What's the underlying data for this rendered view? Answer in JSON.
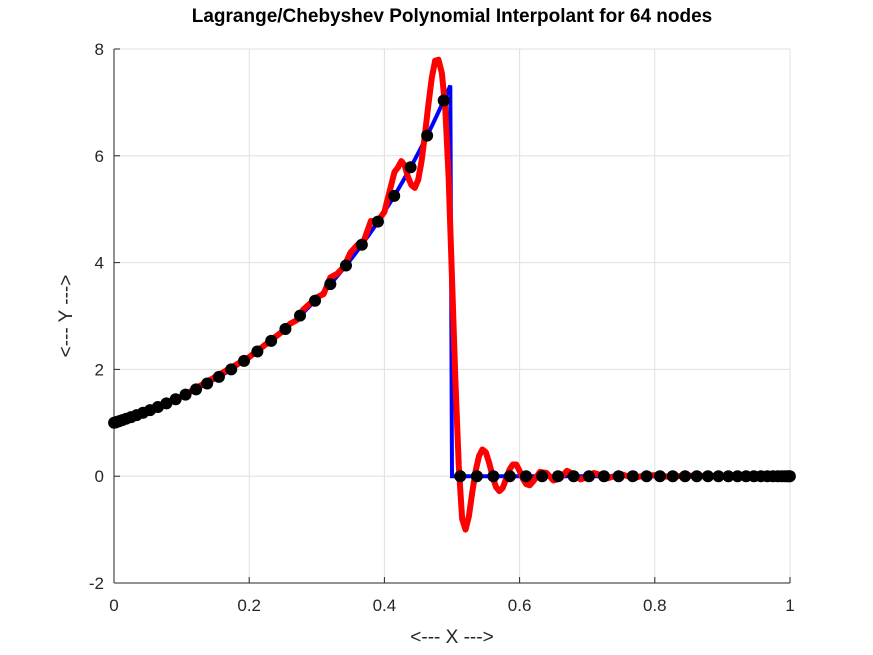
{
  "chart_data": {
    "type": "line",
    "title": "Lagrange/Chebyshev Polynomial Interpolant for 64 nodes",
    "xlabel": "<--- X --->",
    "ylabel": "<--- Y --->",
    "xlim": [
      0,
      1
    ],
    "ylim": [
      -2,
      8
    ],
    "xticks": [
      0,
      0.2,
      0.4,
      0.6,
      0.8,
      1
    ],
    "xtick_labels": [
      "0",
      "0.2",
      "0.4",
      "0.6",
      "0.8",
      "1"
    ],
    "yticks": [
      -2,
      0,
      2,
      4,
      6,
      8
    ],
    "ytick_labels": [
      "-2",
      "0",
      "2",
      "4",
      "6",
      "8"
    ],
    "grid": true,
    "legend": "none",
    "colors": {
      "function": "#0000ff",
      "interpolant": "#ff0000",
      "nodes": "#000000",
      "grid": "#e0e0e0",
      "axes": "#262626"
    },
    "series": [
      {
        "role": "function",
        "color": "#0000ff",
        "description_visible": false,
        "points": [
          [
            0,
            1
          ],
          [
            0.1,
            1.49
          ],
          [
            0.2,
            2.23
          ],
          [
            0.3,
            3.32
          ],
          [
            0.4,
            4.95
          ],
          [
            0.485,
            7.03
          ],
          [
            0.5,
            7.39
          ],
          [
            0.5,
            0
          ],
          [
            1,
            0
          ]
        ]
      },
      {
        "role": "interpolant",
        "color": "#ff0000",
        "points": [
          [
            0.0,
            1.0
          ],
          [
            0.1,
            1.49
          ],
          [
            0.2,
            2.23
          ],
          [
            0.25,
            2.72
          ],
          [
            0.26,
            2.85
          ],
          [
            0.27,
            2.92
          ],
          [
            0.28,
            3.12
          ],
          [
            0.3,
            3.35
          ],
          [
            0.31,
            3.41
          ],
          [
            0.32,
            3.72
          ],
          [
            0.33,
            3.79
          ],
          [
            0.34,
            3.92
          ],
          [
            0.35,
            4.19
          ],
          [
            0.36,
            4.33
          ],
          [
            0.37,
            4.42
          ],
          [
            0.38,
            4.78
          ],
          [
            0.39,
            4.77
          ],
          [
            0.4,
            4.95
          ],
          [
            0.405,
            5.2
          ],
          [
            0.41,
            5.45
          ],
          [
            0.415,
            5.7
          ],
          [
            0.42,
            5.78
          ],
          [
            0.425,
            5.9
          ],
          [
            0.43,
            5.82
          ],
          [
            0.435,
            5.6
          ],
          [
            0.44,
            5.45
          ],
          [
            0.445,
            5.4
          ],
          [
            0.45,
            5.55
          ],
          [
            0.455,
            5.9
          ],
          [
            0.46,
            6.4
          ],
          [
            0.465,
            6.95
          ],
          [
            0.47,
            7.45
          ],
          [
            0.475,
            7.78
          ],
          [
            0.48,
            7.8
          ],
          [
            0.485,
            7.55
          ],
          [
            0.49,
            6.9
          ],
          [
            0.495,
            5.6
          ],
          [
            0.5,
            3.7
          ],
          [
            0.505,
            1.8
          ],
          [
            0.51,
            0.2
          ],
          [
            0.515,
            -0.8
          ],
          [
            0.52,
            -1.0
          ],
          [
            0.525,
            -0.75
          ],
          [
            0.53,
            -0.3
          ],
          [
            0.535,
            0.1
          ],
          [
            0.54,
            0.38
          ],
          [
            0.545,
            0.5
          ],
          [
            0.55,
            0.45
          ],
          [
            0.555,
            0.25
          ],
          [
            0.56,
            0.0
          ],
          [
            0.565,
            -0.2
          ],
          [
            0.57,
            -0.28
          ],
          [
            0.575,
            -0.22
          ],
          [
            0.58,
            -0.05
          ],
          [
            0.585,
            0.12
          ],
          [
            0.59,
            0.22
          ],
          [
            0.595,
            0.22
          ],
          [
            0.6,
            0.1
          ],
          [
            0.605,
            -0.05
          ],
          [
            0.61,
            -0.15
          ],
          [
            0.615,
            -0.17
          ],
          [
            0.62,
            -0.1
          ],
          [
            0.63,
            0.08
          ],
          [
            0.64,
            0.06
          ],
          [
            0.65,
            -0.08
          ],
          [
            0.66,
            -0.04
          ],
          [
            0.67,
            0.1
          ],
          [
            0.68,
            0.04
          ],
          [
            0.69,
            -0.06
          ],
          [
            0.7,
            -0.02
          ],
          [
            0.71,
            0.06
          ],
          [
            0.72,
            0.02
          ],
          [
            0.73,
            -0.04
          ],
          [
            0.74,
            0.0
          ],
          [
            0.75,
            0.04
          ],
          [
            0.76,
            0.0
          ],
          [
            0.77,
            -0.03
          ],
          [
            0.78,
            0.0
          ],
          [
            0.8,
            0.02
          ],
          [
            0.82,
            -0.01
          ],
          [
            0.85,
            0.01
          ],
          [
            0.9,
            0.0
          ],
          [
            1.0,
            0.0
          ]
        ]
      },
      {
        "role": "nodes",
        "color": "#000000",
        "count": 64,
        "points": []
      }
    ]
  }
}
